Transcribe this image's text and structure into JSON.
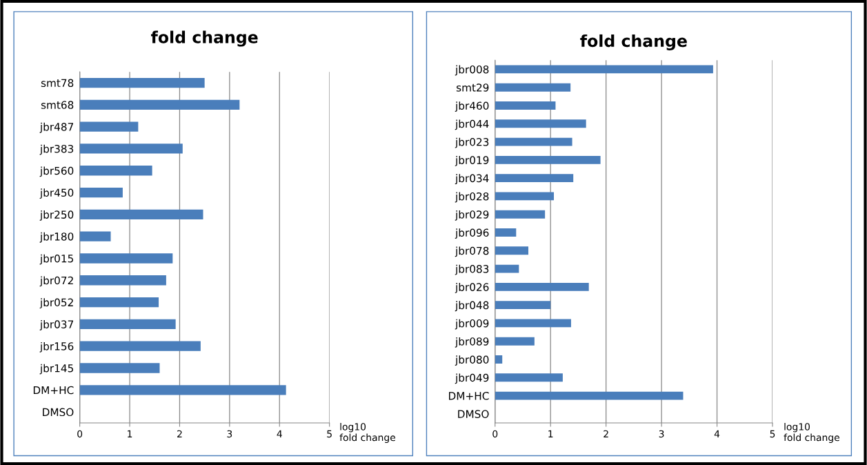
{
  "chart_data": [
    {
      "type": "bar",
      "orientation": "horizontal",
      "title": "fold change",
      "xlabel": "log10\nfold change",
      "categories": [
        "smt78",
        "smt68",
        "jbr487",
        "jbr383",
        "jbr560",
        "jbr450",
        "jbr250",
        "jbr180",
        "jbr015",
        "jbr072",
        "jbr052",
        "jbr037",
        "jbr156",
        "jbr145",
        "DM+HC",
        "DMSO"
      ],
      "values": [
        2.5,
        3.2,
        1.17,
        2.06,
        1.45,
        0.86,
        2.47,
        0.62,
        1.86,
        1.73,
        1.58,
        1.92,
        2.42,
        1.6,
        4.13,
        0
      ],
      "color": "#4a7ebb",
      "xlim": [
        0,
        5
      ],
      "xticks": [
        0,
        1,
        2,
        3,
        4,
        5
      ],
      "grid": "x",
      "legend": false
    },
    {
      "type": "bar",
      "orientation": "horizontal",
      "title": "fold change",
      "xlabel": "log10\nfold change",
      "categories": [
        "jbr008",
        "smt29",
        "jbr460",
        "jbr044",
        "jbr023",
        "jbr019",
        "jbr034",
        "jbr028",
        "jbr029",
        "jbr096",
        "jbr078",
        "jbr083",
        "jbr026",
        "jbr048",
        "jbr009",
        "jbr089",
        "jbr080",
        "jbr049",
        "DM+HC",
        "DMSO"
      ],
      "values": [
        3.93,
        1.36,
        1.09,
        1.64,
        1.39,
        1.9,
        1.41,
        1.06,
        0.9,
        0.38,
        0.6,
        0.43,
        1.69,
        1.0,
        1.37,
        0.71,
        0.13,
        1.22,
        3.39,
        0
      ],
      "color": "#4a7ebb",
      "xlim": [
        0,
        5
      ],
      "xticks": [
        0,
        1,
        2,
        3,
        4,
        5
      ],
      "grid": "x",
      "legend": false
    }
  ]
}
